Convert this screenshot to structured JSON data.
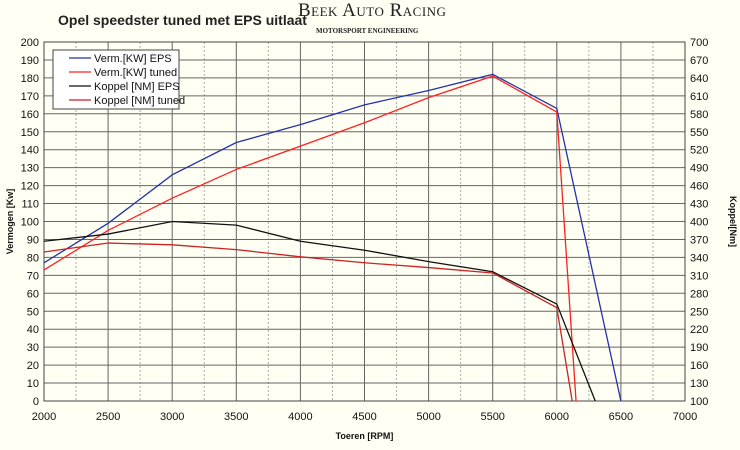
{
  "logo": {
    "name": "Beek Auto Racing",
    "tagline": "MOTORSPORT ENGINEERING"
  },
  "chart_data": {
    "type": "line",
    "title": "Opel speedster tuned met EPS uitlaat",
    "xlabel": "Toeren [RPM]",
    "ylabel": "Vermogen [Kw]",
    "y2label": "Koppel[Nm]",
    "xlim": [
      2000,
      7000
    ],
    "ylim": [
      0,
      200
    ],
    "y2lim": [
      100,
      700
    ],
    "xticks": [
      2000,
      2500,
      3000,
      3500,
      4000,
      4500,
      5000,
      5500,
      6000,
      6500,
      7000
    ],
    "yticks": [
      0,
      10,
      20,
      30,
      40,
      50,
      60,
      70,
      80,
      90,
      100,
      110,
      120,
      130,
      140,
      150,
      160,
      170,
      180,
      190,
      200
    ],
    "y2ticks": [
      100,
      130,
      160,
      190,
      220,
      250,
      280,
      310,
      340,
      370,
      400,
      430,
      460,
      490,
      520,
      550,
      580,
      610,
      640,
      670,
      700
    ],
    "grid": true,
    "legend_position": "top-left",
    "series": [
      {
        "name": "Verm.[KW] EPS",
        "axis": "left",
        "color": "#2233aa",
        "x": [
          2000,
          2500,
          3000,
          3500,
          4000,
          4500,
          5000,
          5500,
          6000,
          6500
        ],
        "values": [
          77,
          99,
          126,
          144,
          154,
          165,
          173,
          182,
          163,
          0
        ]
      },
      {
        "name": "Verm.[KW] tuned",
        "axis": "left",
        "color": "#ff2020",
        "x": [
          2000,
          2500,
          3000,
          3500,
          4000,
          4500,
          5000,
          5500,
          6000,
          6150
        ],
        "values": [
          73,
          95,
          113,
          129,
          142,
          155,
          169,
          181,
          161,
          0
        ]
      },
      {
        "name": "Koppel [NM] EPS",
        "axis": "right",
        "color": "#111111",
        "x": [
          2000,
          2500,
          3000,
          3500,
          4000,
          4500,
          5000,
          5500,
          6000,
          6300
        ],
        "values": [
          367,
          379,
          400,
          394,
          367,
          352,
          333,
          316,
          262,
          100
        ]
      },
      {
        "name": "Koppel [NM] tuned",
        "axis": "right",
        "color": "#cc2222",
        "x": [
          2000,
          2500,
          3000,
          3500,
          4000,
          4500,
          5000,
          5500,
          6000,
          6120
        ],
        "values": [
          349,
          364,
          361,
          353,
          341,
          331,
          323,
          314,
          256,
          100
        ]
      }
    ]
  }
}
